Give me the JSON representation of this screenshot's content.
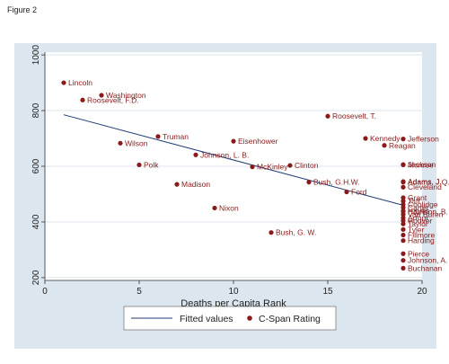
{
  "figure_label": "Figure 2",
  "chart_data": {
    "type": "scatter",
    "title": "",
    "xlabel": "Deaths per Capita Rank",
    "ylabel": "",
    "xlim": [
      0,
      20
    ],
    "ylim": [
      190,
      1010
    ],
    "x_ticks": [
      0,
      5,
      10,
      15,
      20
    ],
    "y_ticks": [
      200,
      400,
      600,
      800,
      1000
    ],
    "grid": "horizontal",
    "legend_position": "bottom",
    "colors": {
      "points": "#8b1a1a",
      "fit_line": "#1f3b73",
      "panel": "#dce6ee",
      "plot": "#ffffff",
      "grid": "#dce6ee"
    },
    "series": [
      {
        "name": "C-Span Rating",
        "kind": "scatter",
        "points": [
          {
            "x": 1,
            "y": 900,
            "label": "Lincoln"
          },
          {
            "x": 3,
            "y": 855,
            "label": "Washington"
          },
          {
            "x": 2,
            "y": 838,
            "label": "Roosevelt, F.D."
          },
          {
            "x": 15,
            "y": 780,
            "label": "Roosevelt, T."
          },
          {
            "x": 6,
            "y": 707,
            "label": "Truman"
          },
          {
            "x": 4,
            "y": 683,
            "label": "Wilson"
          },
          {
            "x": 10,
            "y": 690,
            "label": "Eisenhower"
          },
          {
            "x": 17,
            "y": 700,
            "label": "Kennedy"
          },
          {
            "x": 19,
            "y": 698,
            "label": "Jefferson"
          },
          {
            "x": 18,
            "y": 675,
            "label": "Reagan"
          },
          {
            "x": 8,
            "y": 641,
            "label": "Johnson, L. B."
          },
          {
            "x": 5,
            "y": 605,
            "label": "Polk"
          },
          {
            "x": 11,
            "y": 598,
            "label": "McKinley"
          },
          {
            "x": 13,
            "y": 603,
            "label": "Clinton"
          },
          {
            "x": 19,
            "y": 606,
            "label": "Jackson"
          },
          {
            "x": 19,
            "y": 605,
            "label": "Monroe"
          },
          {
            "x": 14,
            "y": 543,
            "label": "Bush, G.H.W."
          },
          {
            "x": 7,
            "y": 535,
            "label": "Madison"
          },
          {
            "x": 19,
            "y": 545,
            "label": "Adams, J."
          },
          {
            "x": 19,
            "y": 543,
            "label": "Adams, J.Q."
          },
          {
            "x": 19,
            "y": 525,
            "label": "Cleveland"
          },
          {
            "x": 16,
            "y": 508,
            "label": "Ford"
          },
          {
            "x": 19,
            "y": 487,
            "label": "Grant"
          },
          {
            "x": 19,
            "y": 475,
            "label": "Taft"
          },
          {
            "x": 19,
            "y": 463,
            "label": "Coolidge"
          },
          {
            "x": 19,
            "y": 452,
            "label": "Carter"
          },
          {
            "x": 9,
            "y": 450,
            "label": "Nixon"
          },
          {
            "x": 19,
            "y": 440,
            "label": "Hayes"
          },
          {
            "x": 19,
            "y": 437,
            "label": "Harrison, B."
          },
          {
            "x": 19,
            "y": 427,
            "label": "Van Buren"
          },
          {
            "x": 19,
            "y": 415,
            "label": "Arthur"
          },
          {
            "x": 19,
            "y": 405,
            "label": "Hoover"
          },
          {
            "x": 19,
            "y": 393,
            "label": "Taylor"
          },
          {
            "x": 19,
            "y": 373,
            "label": "Tyler"
          },
          {
            "x": 12,
            "y": 362,
            "label": "Bush, G. W."
          },
          {
            "x": 19,
            "y": 353,
            "label": "Fillmore"
          },
          {
            "x": 19,
            "y": 333,
            "label": "Harding"
          },
          {
            "x": 19,
            "y": 286,
            "label": "Pierce"
          },
          {
            "x": 19,
            "y": 262,
            "label": "Johnson, A."
          },
          {
            "x": 19,
            "y": 234,
            "label": "Buchanan"
          }
        ]
      },
      {
        "name": "Fitted values",
        "kind": "line",
        "points": [
          {
            "x": 1,
            "y": 785
          },
          {
            "x": 19,
            "y": 460
          }
        ]
      }
    ],
    "legend": [
      {
        "label": "Fitted values",
        "symbol": "line"
      },
      {
        "label": "C-Span Rating",
        "symbol": "dot"
      }
    ]
  }
}
